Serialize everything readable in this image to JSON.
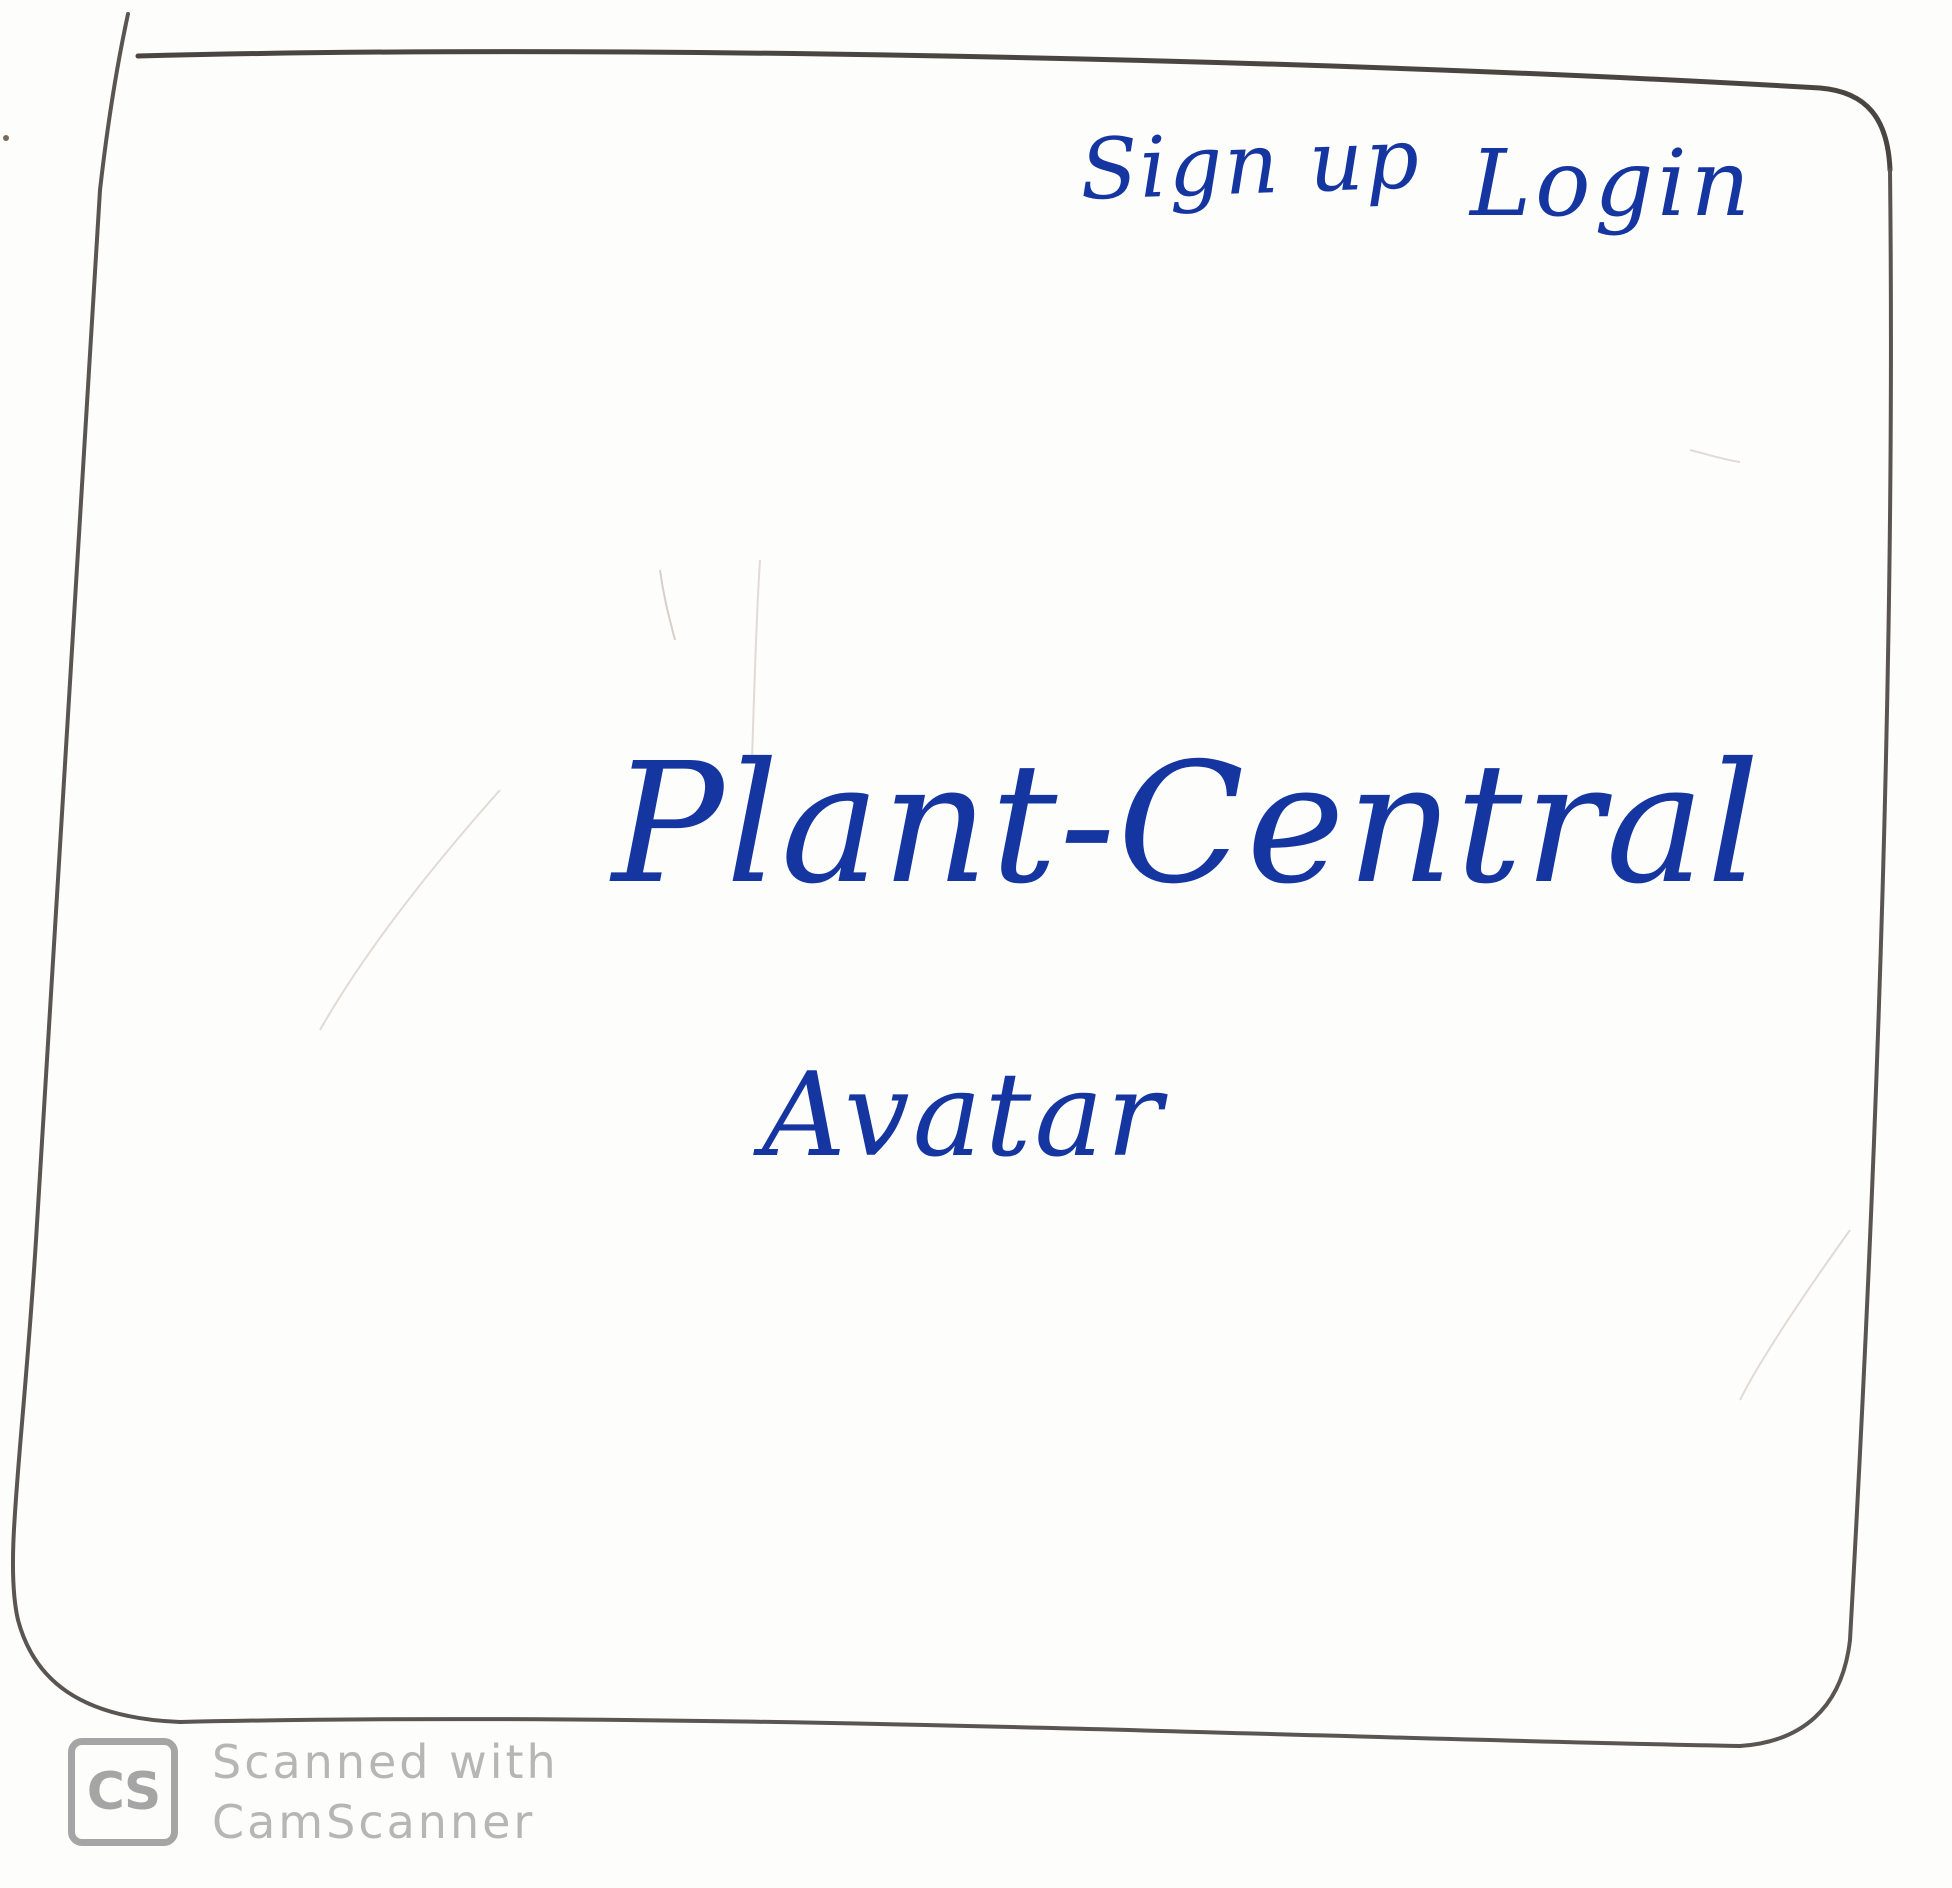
{
  "nav": {
    "signup_label": "Sign up",
    "login_label": "Login"
  },
  "main": {
    "title": "Plant-Central",
    "avatar_label": "Avatar"
  },
  "watermark": {
    "logo_text": "CS",
    "line1": "Scanned with",
    "line2": "CamScanner"
  },
  "colors": {
    "ink": "#1536a0",
    "frame": "#5a5550",
    "watermark": "#a5a5a5"
  }
}
